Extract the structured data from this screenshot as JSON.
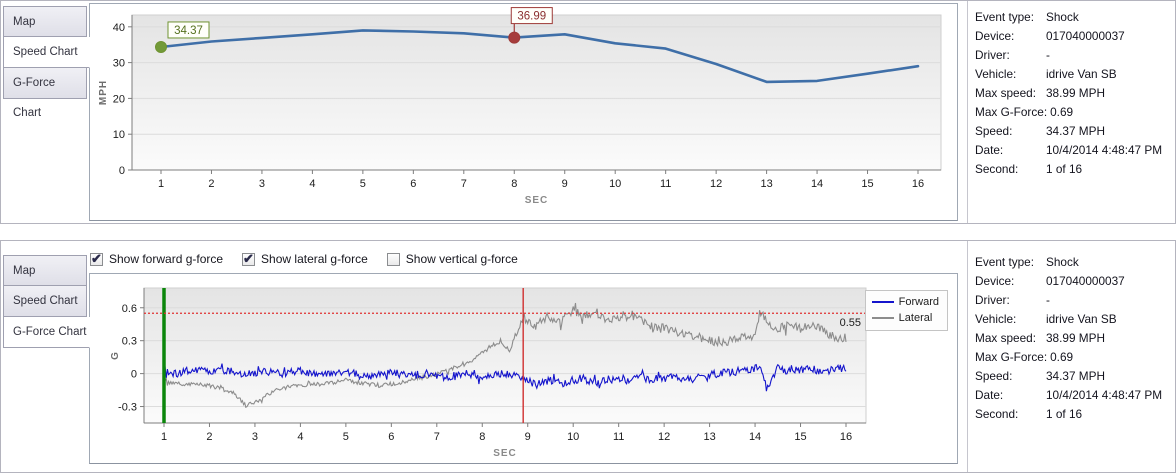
{
  "accent_colors": {
    "speed_line": "#3f6fa8",
    "forward_line": "#1414cc",
    "lateral_line": "#8c8c8c",
    "marker_start": "#6f9331",
    "marker_event": "#9e3a38",
    "green_cursor": "#0b860b",
    "red_cursor": "#d03030",
    "threshold": "#e03030"
  },
  "panels": [
    {
      "name": "speed",
      "tabs": [
        {
          "label": "Map",
          "selected": false
        },
        {
          "label": "Speed Chart",
          "selected": true
        },
        {
          "label": "G-Force Chart",
          "selected": false
        }
      ]
    },
    {
      "name": "gforce",
      "tabs": [
        {
          "label": "Map",
          "selected": false
        },
        {
          "label": "Speed Chart",
          "selected": false
        },
        {
          "label": "G-Force Chart",
          "selected": true
        }
      ]
    }
  ],
  "gforce_controls": {
    "checkboxes": [
      {
        "label": "Show forward g-force",
        "checked": true
      },
      {
        "label": "Show lateral g-force",
        "checked": true
      },
      {
        "label": "Show vertical g-force",
        "checked": false
      }
    ]
  },
  "info_panel": {
    "rows": [
      {
        "label": "Event type:",
        "value": "Shock"
      },
      {
        "label": "Device:",
        "value": "017040000037"
      },
      {
        "label": "Driver:",
        "value": "-"
      },
      {
        "label": "Vehicle:",
        "value": "idrive Van SB"
      },
      {
        "label": "Max speed:",
        "value": "38.99 MPH"
      },
      {
        "label": "Max G-Force:",
        "value": "0.69"
      },
      {
        "label": "Speed:",
        "value": "34.37 MPH"
      },
      {
        "label": "Date:",
        "value": "10/4/2014 4:48:47 PM"
      },
      {
        "label": "Second:",
        "value": "1 of 16"
      }
    ]
  },
  "chart_data": [
    {
      "type": "line",
      "title": "Speed Chart",
      "xlabel": "SEC",
      "ylabel": "MPH",
      "x": [
        1,
        2,
        3,
        4,
        5,
        6,
        7,
        8,
        9,
        10,
        11,
        12,
        13,
        14,
        15,
        16
      ],
      "values": [
        34.37,
        35.9,
        36.9,
        37.9,
        38.99,
        38.7,
        38.2,
        36.99,
        37.9,
        35.4,
        33.9,
        29.6,
        24.6,
        24.9,
        26.9,
        29.0
      ],
      "ylim": [
        0,
        43.3
      ],
      "yticks": [
        0,
        10,
        20,
        30,
        40
      ],
      "xticks": [
        1,
        2,
        3,
        4,
        5,
        6,
        7,
        8,
        9,
        10,
        11,
        12,
        13,
        14,
        15,
        16
      ],
      "grid": "horizontal",
      "line_color": "#3f6fa8",
      "markers": [
        {
          "x": 1,
          "y": 34.37,
          "label": "34.37",
          "color": "#6f9331",
          "fill": "#729a38",
          "text_color": "#55701e"
        },
        {
          "x": 8,
          "y": 36.99,
          "label": "36.99",
          "color": "#9e3a38",
          "fill": "#a63c3c",
          "text_color": "#8b3030"
        }
      ]
    },
    {
      "type": "line",
      "title": "G-Force Chart",
      "xlabel": "SEC",
      "ylabel": "G",
      "ylim": [
        -0.45,
        0.78
      ],
      "yticks": [
        -0.3,
        0,
        0.3,
        0.6
      ],
      "xticks": [
        1,
        2,
        3,
        4,
        5,
        6,
        7,
        8,
        9,
        10,
        11,
        12,
        13,
        14,
        15,
        16
      ],
      "grid": "horizontal",
      "legend_position": "right-top",
      "threshold": {
        "y": 0.55,
        "label": "0.55",
        "color": "#e03030"
      },
      "vlines": [
        {
          "x": 1,
          "color": "#0b860b",
          "width": 3.5,
          "name": "current-second-cursor"
        },
        {
          "x": 8.9,
          "color": "#d03030",
          "width": 1.4,
          "name": "event-cursor"
        }
      ],
      "series": [
        {
          "name": "Forward",
          "color": "#1414cc",
          "seed": 1234,
          "jitter_keypoints": [
            [
              1,
              0.035
            ],
            [
              16,
              0.035
            ]
          ],
          "keypoints": [
            [
              1,
              0.03
            ],
            [
              1.3,
              -0.01
            ],
            [
              1.6,
              0.04
            ],
            [
              2,
              0.01
            ],
            [
              2.4,
              0.03
            ],
            [
              2.8,
              -0.01
            ],
            [
              3.2,
              0.02
            ],
            [
              3.6,
              0
            ],
            [
              4,
              0.02
            ],
            [
              4.4,
              -0.01
            ],
            [
              4.8,
              0.02
            ],
            [
              5.2,
              0
            ],
            [
              5.6,
              -0.02
            ],
            [
              6,
              0.01
            ],
            [
              6.4,
              -0.02
            ],
            [
              6.8,
              0
            ],
            [
              7.2,
              -0.03
            ],
            [
              7.6,
              0
            ],
            [
              8,
              -0.02
            ],
            [
              8.4,
              0
            ],
            [
              8.8,
              -0.02
            ],
            [
              9,
              -0.05
            ],
            [
              9.2,
              -0.1
            ],
            [
              9.5,
              -0.06
            ],
            [
              9.8,
              -0.08
            ],
            [
              10.2,
              -0.04
            ],
            [
              10.5,
              -0.09
            ],
            [
              10.8,
              -0.05
            ],
            [
              11.2,
              -0.07
            ],
            [
              11.5,
              -0.03
            ],
            [
              11.8,
              -0.06
            ],
            [
              12.2,
              -0.03
            ],
            [
              12.6,
              -0.05
            ],
            [
              13,
              -0.01
            ],
            [
              13.4,
              0.01
            ],
            [
              13.8,
              0.03
            ],
            [
              14.1,
              0.06
            ],
            [
              14.25,
              -0.13
            ],
            [
              14.5,
              0.05
            ],
            [
              14.8,
              0.02
            ],
            [
              15.2,
              0.05
            ],
            [
              15.5,
              0.01
            ],
            [
              15.8,
              0.05
            ],
            [
              16,
              0.04
            ]
          ]
        },
        {
          "name": "Lateral",
          "color": "#8c8c8c",
          "seed": 99,
          "jitter_keypoints": [
            [
              1,
              0.018
            ],
            [
              8.5,
              0.02
            ],
            [
              9,
              0.04
            ],
            [
              16,
              0.04
            ]
          ],
          "keypoints": [
            [
              1,
              -0.07
            ],
            [
              1.4,
              -0.1
            ],
            [
              1.8,
              -0.09
            ],
            [
              2.2,
              -0.13
            ],
            [
              2.5,
              -0.17
            ],
            [
              2.8,
              -0.29
            ],
            [
              3.1,
              -0.24
            ],
            [
              3.4,
              -0.16
            ],
            [
              3.8,
              -0.11
            ],
            [
              4.2,
              -0.1
            ],
            [
              4.6,
              -0.09
            ],
            [
              5,
              -0.06
            ],
            [
              5.4,
              -0.09
            ],
            [
              5.8,
              -0.11
            ],
            [
              6.2,
              -0.08
            ],
            [
              6.6,
              -0.04
            ],
            [
              7,
              -0.01
            ],
            [
              7.4,
              0.06
            ],
            [
              7.8,
              0.13
            ],
            [
              8.1,
              0.22
            ],
            [
              8.4,
              0.3
            ],
            [
              8.6,
              0.22
            ],
            [
              8.9,
              0.52
            ],
            [
              9.1,
              0.42
            ],
            [
              9.4,
              0.5
            ],
            [
              9.7,
              0.46
            ],
            [
              10,
              0.58
            ],
            [
              10.2,
              0.52
            ],
            [
              10.5,
              0.56
            ],
            [
              10.8,
              0.48
            ],
            [
              11.1,
              0.53
            ],
            [
              11.4,
              0.5
            ],
            [
              11.7,
              0.44
            ],
            [
              12,
              0.42
            ],
            [
              12.4,
              0.36
            ],
            [
              12.8,
              0.33
            ],
            [
              13.2,
              0.28
            ],
            [
              13.6,
              0.31
            ],
            [
              14,
              0.36
            ],
            [
              14.15,
              0.55
            ],
            [
              14.4,
              0.4
            ],
            [
              14.7,
              0.44
            ],
            [
              15,
              0.41
            ],
            [
              15.3,
              0.45
            ],
            [
              15.6,
              0.36
            ],
            [
              16,
              0.3
            ]
          ]
        }
      ]
    }
  ]
}
